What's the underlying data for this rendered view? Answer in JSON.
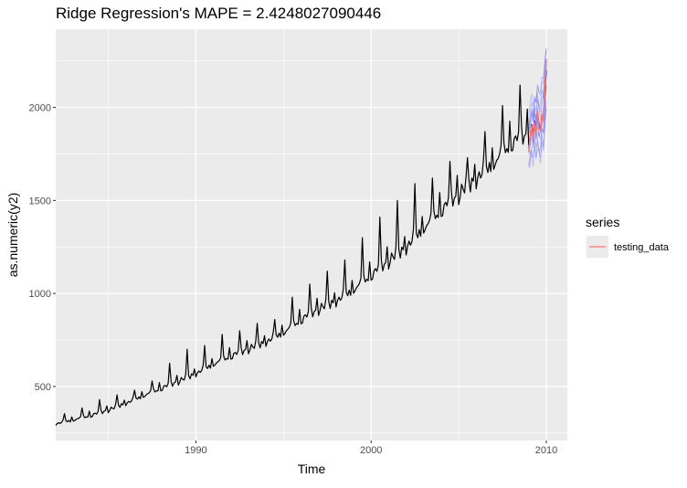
{
  "chart_data": {
    "type": "line",
    "title": "Ridge Regression's MAPE =  2.4248027090446",
    "xlabel": "Time",
    "ylabel": "as.numeric(y2)",
    "xlim": [
      1982.0,
      2011.2
    ],
    "ylim": [
      210,
      2420
    ],
    "x_ticks": [
      1990,
      2000,
      2010
    ],
    "x_tick_labels": [
      "1990",
      "2000",
      "2010"
    ],
    "y_ticks": [
      500,
      1000,
      1500,
      2000
    ],
    "y_tick_labels": [
      "500",
      "1000",
      "1500",
      "2000"
    ],
    "grid": true,
    "legend": {
      "title": "series",
      "position": "right",
      "entries": [
        {
          "label": "testing_data",
          "color": "#F8766D"
        }
      ]
    },
    "series": [
      {
        "name": "",
        "color": "#000000",
        "x_start": 1982.0,
        "x_step": 0.083333,
        "annual_anchors": [
          {
            "x": 1982,
            "y": 300
          },
          {
            "x": 1983,
            "y": 320
          },
          {
            "x": 1984,
            "y": 345
          },
          {
            "x": 1985,
            "y": 375
          },
          {
            "x": 1986,
            "y": 410
          },
          {
            "x": 1987,
            "y": 450
          },
          {
            "x": 1988,
            "y": 490
          },
          {
            "x": 1989,
            "y": 530
          },
          {
            "x": 1990,
            "y": 570
          },
          {
            "x": 1991,
            "y": 620
          },
          {
            "x": 1992,
            "y": 665
          },
          {
            "x": 1993,
            "y": 705
          },
          {
            "x": 1994,
            "y": 740
          },
          {
            "x": 1995,
            "y": 790
          },
          {
            "x": 1996,
            "y": 860
          },
          {
            "x": 1997,
            "y": 920
          },
          {
            "x": 1998,
            "y": 960
          },
          {
            "x": 1999,
            "y": 1020
          },
          {
            "x": 2000,
            "y": 1100
          },
          {
            "x": 2001,
            "y": 1180
          },
          {
            "x": 2002,
            "y": 1250
          },
          {
            "x": 2003,
            "y": 1350
          },
          {
            "x": 2004,
            "y": 1450
          },
          {
            "x": 2005,
            "y": 1540
          },
          {
            "x": 2006,
            "y": 1620
          },
          {
            "x": 2007,
            "y": 1700
          },
          {
            "x": 2008,
            "y": 1810
          },
          {
            "x": 2009,
            "y": 1870
          }
        ],
        "seasonal_pattern": [
          0.97,
          0.985,
          1.01,
          1.0,
          0.995,
          1.03,
          1.15,
          1.02,
          0.98,
          1.005,
          0.99,
          1.06
        ],
        "annual_peaks": [
          {
            "x": 1983.5,
            "y": 385
          },
          {
            "x": 1984.5,
            "y": 430
          },
          {
            "x": 1986.5,
            "y": 480
          },
          {
            "x": 1987.5,
            "y": 530
          },
          {
            "x": 1988.5,
            "y": 625
          },
          {
            "x": 1989.5,
            "y": 700
          },
          {
            "x": 1990.5,
            "y": 720
          },
          {
            "x": 1991.5,
            "y": 780
          },
          {
            "x": 1992.5,
            "y": 800
          },
          {
            "x": 1993.5,
            "y": 840
          },
          {
            "x": 1994.5,
            "y": 860
          },
          {
            "x": 1995.5,
            "y": 980
          },
          {
            "x": 1996.5,
            "y": 1050
          },
          {
            "x": 1997.5,
            "y": 1120
          },
          {
            "x": 1998.5,
            "y": 1180
          },
          {
            "x": 1999.5,
            "y": 1300
          },
          {
            "x": 2000.5,
            "y": 1410
          },
          {
            "x": 2001.5,
            "y": 1500
          },
          {
            "x": 2002.5,
            "y": 1590
          },
          {
            "x": 2003.5,
            "y": 1620
          },
          {
            "x": 2004.5,
            "y": 1710
          },
          {
            "x": 2005.5,
            "y": 1730
          },
          {
            "x": 2006.5,
            "y": 1870
          },
          {
            "x": 2007.5,
            "y": 2010
          },
          {
            "x": 2008.5,
            "y": 2120
          }
        ]
      },
      {
        "name": "testing_data",
        "color": "#F8766D",
        "x": [
          2009.0,
          2009.083,
          2009.167,
          2009.25,
          2009.333,
          2009.417,
          2009.5,
          2009.583,
          2009.667,
          2009.75,
          2009.833,
          2009.917,
          2010.0
        ],
        "y": [
          1760,
          1850,
          1900,
          1830,
          1920,
          1870,
          1980,
          1890,
          1870,
          1960,
          1930,
          2080,
          2260
        ]
      }
    ],
    "prediction_band": {
      "color": "#3B3BFF",
      "x": [
        2009.0,
        2009.083,
        2009.167,
        2009.25,
        2009.333,
        2009.417,
        2009.5,
        2009.583,
        2009.667,
        2009.75,
        2009.833,
        2009.917,
        2010.0
      ],
      "mean": [
        1780,
        1840,
        1910,
        1850,
        1930,
        1890,
        1960,
        1900,
        1880,
        1950,
        1940,
        2060,
        2200
      ],
      "lower": [
        1670,
        1700,
        1730,
        1700,
        1760,
        1720,
        1780,
        1730,
        1720,
        1780,
        1770,
        1860,
        1960
      ],
      "upper": [
        1950,
        2010,
        2060,
        2020,
        2100,
        2070,
        2150,
        2090,
        2070,
        2140,
        2150,
        2280,
        2360
      ]
    }
  }
}
